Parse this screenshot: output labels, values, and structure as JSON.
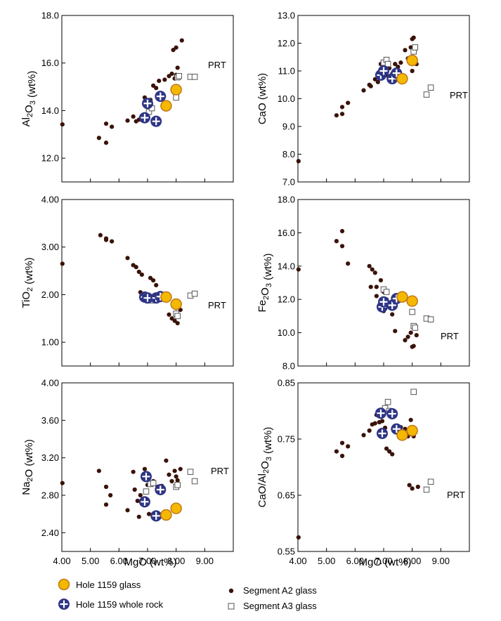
{
  "figure": {
    "xlabel": "MgO (wt%)",
    "x_ticks": [
      "4.00",
      "5.00",
      "6.00",
      "7.00",
      "8.00",
      "9.00"
    ],
    "legend": {
      "hole_glass": "Hole 1159 glass",
      "hole_rock": "Hole 1159 whole rock",
      "seg_a2": "Segment A2 glass",
      "seg_a3": "Segment A3 glass"
    },
    "colors": {
      "glass_fill": "#f5b800",
      "glass_stroke": "#c07818",
      "rock_fill": "#2e3585",
      "a2": "#3a1208",
      "a3_stroke": "#555555"
    }
  },
  "chart_data": [
    {
      "type": "scatter",
      "ylabel": "Al2O3 (wt%)",
      "ylim": [
        11.0,
        18.0
      ],
      "xlim": [
        4.0,
        10.0
      ],
      "y_ticks": [
        "12.0",
        "14.0",
        "16.0",
        "18.0"
      ],
      "annotation": "PRT",
      "series": [
        {
          "name": "Segment A2 glass",
          "points": [
            [
              4.02,
              13.42
            ],
            [
              5.3,
              12.85
            ],
            [
              5.55,
              12.65
            ],
            [
              5.55,
              13.45
            ],
            [
              5.75,
              13.32
            ],
            [
              6.3,
              13.58
            ],
            [
              6.5,
              13.75
            ],
            [
              6.6,
              13.55
            ],
            [
              6.7,
              13.62
            ],
            [
              6.85,
              13.75
            ],
            [
              6.9,
              14.55
            ],
            [
              7.05,
              14.1
            ],
            [
              7.1,
              14.45
            ],
            [
              7.2,
              15.05
            ],
            [
              7.3,
              14.95
            ],
            [
              7.4,
              15.25
            ],
            [
              7.6,
              15.3
            ],
            [
              7.75,
              15.45
            ],
            [
              7.85,
              15.55
            ],
            [
              7.95,
              15.35
            ],
            [
              8.0,
              15.5
            ],
            [
              8.05,
              15.8
            ],
            [
              7.9,
              16.55
            ],
            [
              8.0,
              16.65
            ],
            [
              8.2,
              16.95
            ]
          ]
        },
        {
          "name": "Segment A3 glass",
          "points": [
            [
              7.05,
              13.95
            ],
            [
              7.15,
              14.1
            ],
            [
              8.0,
              14.55
            ],
            [
              8.05,
              15.4
            ],
            [
              8.1,
              15.45
            ],
            [
              8.5,
              15.42
            ],
            [
              8.65,
              15.42
            ]
          ]
        },
        {
          "name": "Hole 1159 glass",
          "points": [
            [
              7.65,
              14.2
            ],
            [
              8.0,
              14.88
            ]
          ]
        },
        {
          "name": "Hole 1159 whole rock",
          "points": [
            [
              6.9,
              13.7
            ],
            [
              7.0,
              14.3
            ],
            [
              7.3,
              13.55
            ],
            [
              7.45,
              14.6
            ]
          ]
        }
      ]
    },
    {
      "type": "scatter",
      "ylabel": "CaO (wt%)",
      "ylim": [
        7.0,
        13.0
      ],
      "xlim": [
        4.0,
        10.0
      ],
      "y_ticks": [
        "7.0",
        "8.0",
        "9.0",
        "10.0",
        "11.0",
        "12.0",
        "13.0"
      ],
      "annotation": "PRT",
      "series": [
        {
          "name": "Segment A2 glass",
          "points": [
            [
              4.02,
              7.75
            ],
            [
              5.35,
              9.4
            ],
            [
              5.55,
              9.45
            ],
            [
              5.55,
              9.7
            ],
            [
              5.75,
              9.85
            ],
            [
              6.3,
              10.3
            ],
            [
              6.5,
              10.5
            ],
            [
              6.55,
              10.45
            ],
            [
              6.7,
              10.7
            ],
            [
              6.8,
              10.6
            ],
            [
              6.9,
              11.25
            ],
            [
              7.0,
              11.05
            ],
            [
              7.1,
              10.85
            ],
            [
              7.2,
              11.1
            ],
            [
              7.3,
              10.9
            ],
            [
              7.4,
              11.25
            ],
            [
              7.5,
              11.15
            ],
            [
              7.6,
              11.3
            ],
            [
              7.75,
              11.75
            ],
            [
              7.85,
              11.45
            ],
            [
              7.95,
              11.85
            ],
            [
              8.0,
              12.15
            ],
            [
              8.05,
              12.2
            ],
            [
              8.15,
              11.25
            ],
            [
              8.0,
              11.0
            ]
          ]
        },
        {
          "name": "Segment A3 glass",
          "points": [
            [
              7.0,
              11.3
            ],
            [
              7.1,
              11.4
            ],
            [
              7.15,
              11.25
            ],
            [
              8.05,
              11.7
            ],
            [
              8.1,
              11.85
            ],
            [
              8.5,
              10.15
            ],
            [
              8.65,
              10.4
            ]
          ]
        },
        {
          "name": "Hole 1159 glass",
          "points": [
            [
              7.65,
              10.72
            ],
            [
              8.0,
              11.38
            ]
          ]
        },
        {
          "name": "Hole 1159 whole rock",
          "points": [
            [
              6.9,
              10.85
            ],
            [
              7.0,
              11.0
            ],
            [
              7.3,
              10.72
            ],
            [
              7.45,
              10.92
            ]
          ]
        }
      ]
    },
    {
      "type": "scatter",
      "ylabel": "TiO2 (wt%)",
      "ylim": [
        0.5,
        4.0
      ],
      "xlim": [
        4.0,
        10.0
      ],
      "y_ticks": [
        "1.00",
        "2.00",
        "3.00",
        "4.00"
      ],
      "annotation": "PRT",
      "series": [
        {
          "name": "Segment A2 glass",
          "points": [
            [
              4.02,
              2.65
            ],
            [
              5.35,
              3.25
            ],
            [
              5.55,
              3.18
            ],
            [
              5.55,
              3.15
            ],
            [
              5.75,
              3.12
            ],
            [
              6.3,
              2.77
            ],
            [
              6.5,
              2.62
            ],
            [
              6.6,
              2.58
            ],
            [
              6.7,
              2.48
            ],
            [
              6.8,
              2.42
            ],
            [
              6.75,
              2.05
            ],
            [
              6.9,
              1.95
            ],
            [
              7.1,
              2.35
            ],
            [
              7.2,
              2.3
            ],
            [
              7.3,
              2.2
            ],
            [
              7.5,
              1.92
            ],
            [
              7.75,
              1.58
            ],
            [
              7.85,
              1.5
            ],
            [
              7.95,
              1.45
            ],
            [
              8.0,
              1.72
            ],
            [
              8.05,
              1.4
            ],
            [
              8.15,
              1.68
            ],
            [
              7.6,
              1.98
            ]
          ]
        },
        {
          "name": "Segment A3 glass",
          "points": [
            [
              7.05,
              1.92
            ],
            [
              7.15,
              1.88
            ],
            [
              8.0,
              1.6
            ],
            [
              8.05,
              1.55
            ],
            [
              8.5,
              1.98
            ],
            [
              8.65,
              2.02
            ]
          ]
        },
        {
          "name": "Hole 1159 glass",
          "points": [
            [
              7.65,
              1.95
            ],
            [
              8.0,
              1.8
            ]
          ]
        },
        {
          "name": "Hole 1159 whole rock",
          "points": [
            [
              6.9,
              1.95
            ],
            [
              7.0,
              1.93
            ],
            [
              7.3,
              1.93
            ],
            [
              7.45,
              1.96
            ]
          ]
        }
      ]
    },
    {
      "type": "scatter",
      "ylabel": "Fe2O3 (wt%)",
      "ylim": [
        8.0,
        18.0
      ],
      "xlim": [
        4.0,
        10.0
      ],
      "y_ticks": [
        "8.0",
        "10.0",
        "12.0",
        "14.0",
        "16.0",
        "18.0"
      ],
      "annotation": "PRT",
      "series": [
        {
          "name": "Segment A2 glass",
          "points": [
            [
              4.02,
              13.8
            ],
            [
              5.35,
              15.5
            ],
            [
              5.55,
              16.1
            ],
            [
              5.55,
              15.2
            ],
            [
              5.75,
              14.15
            ],
            [
              6.5,
              14.0
            ],
            [
              6.6,
              13.8
            ],
            [
              6.7,
              13.6
            ],
            [
              6.55,
              12.75
            ],
            [
              6.75,
              12.75
            ],
            [
              6.9,
              13.15
            ],
            [
              7.0,
              12.45
            ],
            [
              7.1,
              12.0
            ],
            [
              7.2,
              11.55
            ],
            [
              7.3,
              11.1
            ],
            [
              7.4,
              10.1
            ],
            [
              7.75,
              9.55
            ],
            [
              7.85,
              9.75
            ],
            [
              7.95,
              10.0
            ],
            [
              8.0,
              9.15
            ],
            [
              8.05,
              9.2
            ],
            [
              8.15,
              9.85
            ],
            [
              6.9,
              11.55
            ],
            [
              7.0,
              11.3
            ],
            [
              6.75,
              12.2
            ]
          ]
        },
        {
          "name": "Segment A3 glass",
          "points": [
            [
              7.0,
              12.6
            ],
            [
              7.1,
              12.45
            ],
            [
              8.0,
              11.25
            ],
            [
              8.05,
              10.4
            ],
            [
              8.1,
              10.3
            ],
            [
              8.5,
              10.85
            ],
            [
              8.65,
              10.8
            ]
          ]
        },
        {
          "name": "Hole 1159 glass",
          "points": [
            [
              7.65,
              12.15
            ],
            [
              8.0,
              11.9
            ]
          ]
        },
        {
          "name": "Hole 1159 whole rock",
          "points": [
            [
              6.95,
              11.55
            ],
            [
              7.0,
              11.85
            ],
            [
              7.3,
              11.65
            ],
            [
              7.45,
              12.05
            ]
          ]
        }
      ]
    },
    {
      "type": "scatter",
      "ylabel": "Na2O (wt%)",
      "ylim": [
        2.2,
        4.0
      ],
      "xlim": [
        4.0,
        10.0
      ],
      "y_ticks": [
        "2.40",
        "2.80",
        "3.20",
        "3.60",
        "4.00"
      ],
      "annotation": "PRT",
      "series": [
        {
          "name": "Segment A2 glass",
          "points": [
            [
              4.02,
              2.93
            ],
            [
              5.3,
              3.06
            ],
            [
              5.55,
              2.89
            ],
            [
              5.55,
              2.7
            ],
            [
              5.7,
              2.8
            ],
            [
              6.3,
              2.64
            ],
            [
              6.5,
              3.05
            ],
            [
              6.55,
              2.86
            ],
            [
              6.7,
              2.57
            ],
            [
              6.75,
              2.8
            ],
            [
              6.9,
              3.08
            ],
            [
              7.0,
              2.91
            ],
            [
              7.05,
              2.6
            ],
            [
              7.1,
              2.92
            ],
            [
              7.2,
              2.95
            ],
            [
              7.35,
              2.89
            ],
            [
              7.5,
              2.9
            ],
            [
              7.65,
              3.17
            ],
            [
              7.75,
              3.02
            ],
            [
              7.85,
              2.95
            ],
            [
              7.95,
              3.06
            ],
            [
              8.0,
              3.0
            ],
            [
              8.05,
              2.96
            ],
            [
              8.15,
              3.08
            ],
            [
              6.65,
              2.74
            ]
          ]
        },
        {
          "name": "Segment A3 glass",
          "points": [
            [
              7.1,
              2.92
            ],
            [
              7.2,
              2.93
            ],
            [
              8.0,
              2.89
            ],
            [
              8.05,
              2.91
            ],
            [
              8.5,
              3.05
            ],
            [
              8.65,
              2.95
            ],
            [
              6.95,
              2.84
            ]
          ]
        },
        {
          "name": "Hole 1159 glass",
          "points": [
            [
              7.65,
              2.59
            ],
            [
              8.0,
              2.66
            ]
          ]
        },
        {
          "name": "Hole 1159 whole rock",
          "points": [
            [
              6.9,
              2.73
            ],
            [
              6.95,
              3.0
            ],
            [
              7.3,
              2.58
            ],
            [
              7.45,
              2.86
            ]
          ]
        }
      ]
    },
    {
      "type": "scatter",
      "ylabel": "CaO/Al2O3 (wt%)",
      "ylim": [
        0.55,
        0.85
      ],
      "xlim": [
        4.0,
        10.0
      ],
      "y_ticks": [
        "0.55",
        "0.65",
        "0.75",
        "0.85"
      ],
      "annotation": "PRT",
      "series": [
        {
          "name": "Segment A2 glass",
          "points": [
            [
              4.02,
              0.575
            ],
            [
              5.35,
              0.728
            ],
            [
              5.55,
              0.72
            ],
            [
              5.55,
              0.743
            ],
            [
              5.75,
              0.737
            ],
            [
              6.3,
              0.757
            ],
            [
              6.5,
              0.765
            ],
            [
              6.6,
              0.776
            ],
            [
              6.7,
              0.778
            ],
            [
              6.75,
              0.793
            ],
            [
              6.85,
              0.78
            ],
            [
              6.95,
              0.782
            ],
            [
              7.05,
              0.77
            ],
            [
              7.1,
              0.733
            ],
            [
              7.2,
              0.728
            ],
            [
              7.3,
              0.723
            ],
            [
              7.4,
              0.768
            ],
            [
              7.6,
              0.771
            ],
            [
              7.75,
              0.768
            ],
            [
              7.85,
              0.755
            ],
            [
              7.9,
              0.668
            ],
            [
              7.95,
              0.784
            ],
            [
              8.0,
              0.662
            ],
            [
              8.05,
              0.755
            ],
            [
              8.2,
              0.665
            ]
          ]
        },
        {
          "name": "Segment A3 glass",
          "points": [
            [
              7.05,
              0.805
            ],
            [
              7.15,
              0.816
            ],
            [
              7.2,
              0.8
            ],
            [
              8.05,
              0.834
            ],
            [
              8.0,
              0.762
            ],
            [
              8.5,
              0.66
            ],
            [
              8.65,
              0.674
            ]
          ]
        },
        {
          "name": "Hole 1159 glass",
          "points": [
            [
              7.65,
              0.757
            ],
            [
              8.0,
              0.765
            ]
          ]
        },
        {
          "name": "Hole 1159 whole rock",
          "points": [
            [
              6.9,
              0.796
            ],
            [
              6.95,
              0.76
            ],
            [
              7.3,
              0.795
            ],
            [
              7.45,
              0.768
            ]
          ]
        }
      ]
    }
  ]
}
